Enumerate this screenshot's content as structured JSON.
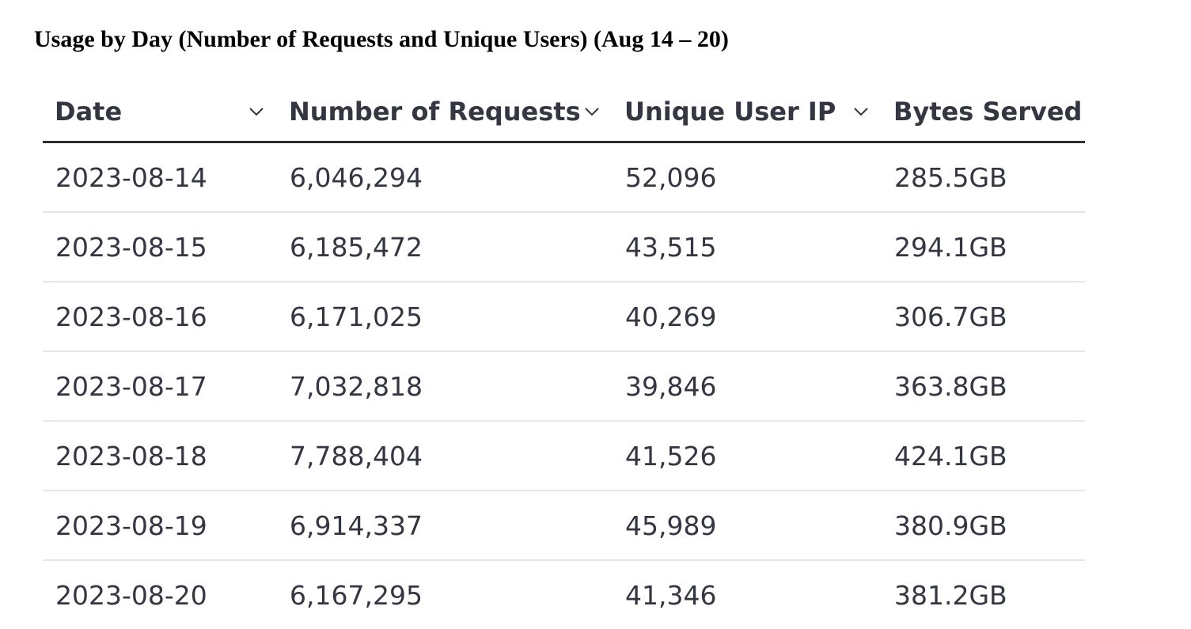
{
  "title": "Usage by Day (Number of Requests and Unique Users) (Aug 14 – 20)",
  "table": {
    "columns": [
      {
        "label": "Date",
        "sort_icon": "chevron-down-icon"
      },
      {
        "label": "Number of Requests",
        "sort_icon": "chevron-down-icon"
      },
      {
        "label": "Unique User IP",
        "sort_icon": "chevron-down-icon"
      },
      {
        "label": "Bytes Served"
      }
    ],
    "rows": [
      {
        "date": "2023-08-14",
        "requests": "6,046,294",
        "unique_ips": "52,096",
        "bytes": "285.5GB"
      },
      {
        "date": "2023-08-15",
        "requests": "6,185,472",
        "unique_ips": "43,515",
        "bytes": "294.1GB"
      },
      {
        "date": "2023-08-16",
        "requests": "6,171,025",
        "unique_ips": "40,269",
        "bytes": "306.7GB"
      },
      {
        "date": "2023-08-17",
        "requests": "7,032,818",
        "unique_ips": "39,846",
        "bytes": "363.8GB"
      },
      {
        "date": "2023-08-18",
        "requests": "7,788,404",
        "unique_ips": "41,526",
        "bytes": "424.1GB"
      },
      {
        "date": "2023-08-19",
        "requests": "6,914,337",
        "unique_ips": "45,989",
        "bytes": "380.9GB"
      },
      {
        "date": "2023-08-20",
        "requests": "6,167,295",
        "unique_ips": "41,346",
        "bytes": "381.2GB"
      }
    ]
  },
  "colors": {
    "text": "#343741",
    "header_rule": "#2a2d36",
    "row_divider": "#e3e6ec"
  }
}
